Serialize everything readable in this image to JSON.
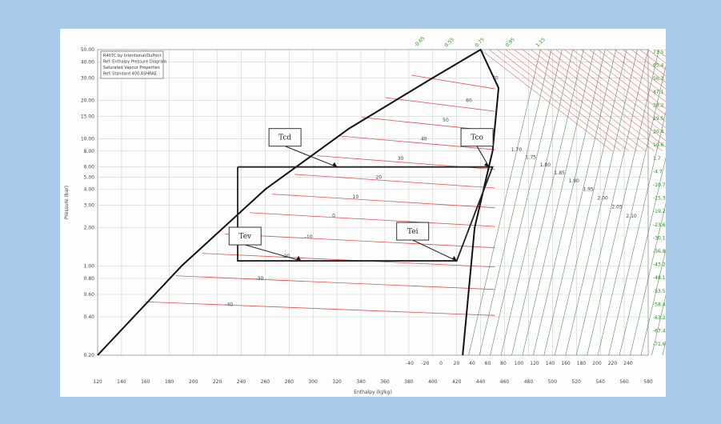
{
  "colors": {
    "background": "#a9cbe9",
    "panel": "#fdfdfd",
    "grid": "#cfcfcf",
    "isotherm": "#e05050",
    "superheat_grid": "#2f7d2f",
    "dome": "#111111",
    "cycle": "#222222",
    "isentrope_label": "#3a3ad0",
    "right_axis_label": "#2a8a2a"
  },
  "chart_data": {
    "type": "line",
    "title": "",
    "legend": {
      "position": "top-left",
      "lines": [
        "R407C by Intentional/DuPont",
        "Ref: Enthalpy Pressure Diagram",
        "Saturated Vapour Properties",
        "Ref: Standard 400 ASHRAE"
      ]
    },
    "xlabel": "Enthalpy (kJ/kg)",
    "ylabel": "Pressure (bar)",
    "x_ticks": [
      "120",
      "140",
      "160",
      "180",
      "200",
      "220",
      "240",
      "260",
      "280",
      "300",
      "320",
      "340",
      "360",
      "380",
      "400",
      "420",
      "440",
      "460",
      "480",
      "500",
      "520",
      "540",
      "560",
      "580"
    ],
    "y_ticks": [
      "0.20",
      "0.40",
      "0.60",
      "0.80",
      "1.00",
      "2.00",
      "3.00",
      "4.00",
      "5.00",
      "6.00",
      "8.00",
      "10.00",
      "15.00",
      "20.00",
      "30.00",
      "40.00",
      "50.00"
    ],
    "right_ticks": [
      "73.5",
      "65.4",
      "56.3",
      "47.1",
      "38.2",
      "29.5",
      "20.4",
      "10.6",
      "1.7",
      "-4.7",
      "-10.7",
      "-15.3",
      "-19.2",
      "-23.6",
      "-30.1",
      "-36.8",
      "-43.2",
      "-48.1",
      "-53.5",
      "-58.4",
      "-63.2",
      "-67.4",
      "-71.6"
    ],
    "bottom_right_ticks": [
      "-40",
      "-20",
      "0",
      "20",
      "40",
      "60",
      "80",
      "100",
      "120",
      "140",
      "160",
      "180",
      "200",
      "220",
      "240"
    ],
    "isotherm_labels": [
      "70",
      "60",
      "50",
      "40",
      "30",
      "20",
      "10",
      "0",
      "-10",
      "-20",
      "-30",
      "-40"
    ],
    "top_labels": [
      "-0.65",
      "0.55",
      "0.75",
      "0.95",
      "1.15"
    ],
    "isentrope_labels": [
      "1.70",
      "1.75",
      "1.80",
      "1.85",
      "1.90",
      "1.95",
      "2.00",
      "2.05",
      "2.10"
    ],
    "dome": {
      "liquid_x": [
        120,
        190,
        260,
        330,
        400,
        440
      ],
      "liquid_y": [
        0.2,
        1.0,
        4.0,
        12.0,
        30.0,
        50.0
      ],
      "vapor_x": [
        440,
        455,
        450,
        435,
        425
      ],
      "vapor_y": [
        50.0,
        25.0,
        8.0,
        2.0,
        0.2
      ]
    },
    "cycle": {
      "x": [
        237,
        450,
        420,
        237,
        237
      ],
      "y": [
        6.0,
        6.0,
        1.1,
        1.1,
        6.0
      ]
    },
    "annotations": [
      {
        "text": "Tcd",
        "arrow_to": [
          320,
          6.0
        ]
      },
      {
        "text": "Tco",
        "arrow_to": [
          447,
          6.0
        ]
      },
      {
        "text": "Tev",
        "arrow_to": [
          290,
          1.1
        ]
      },
      {
        "text": "Tei",
        "arrow_to": [
          420,
          1.1
        ]
      }
    ]
  }
}
